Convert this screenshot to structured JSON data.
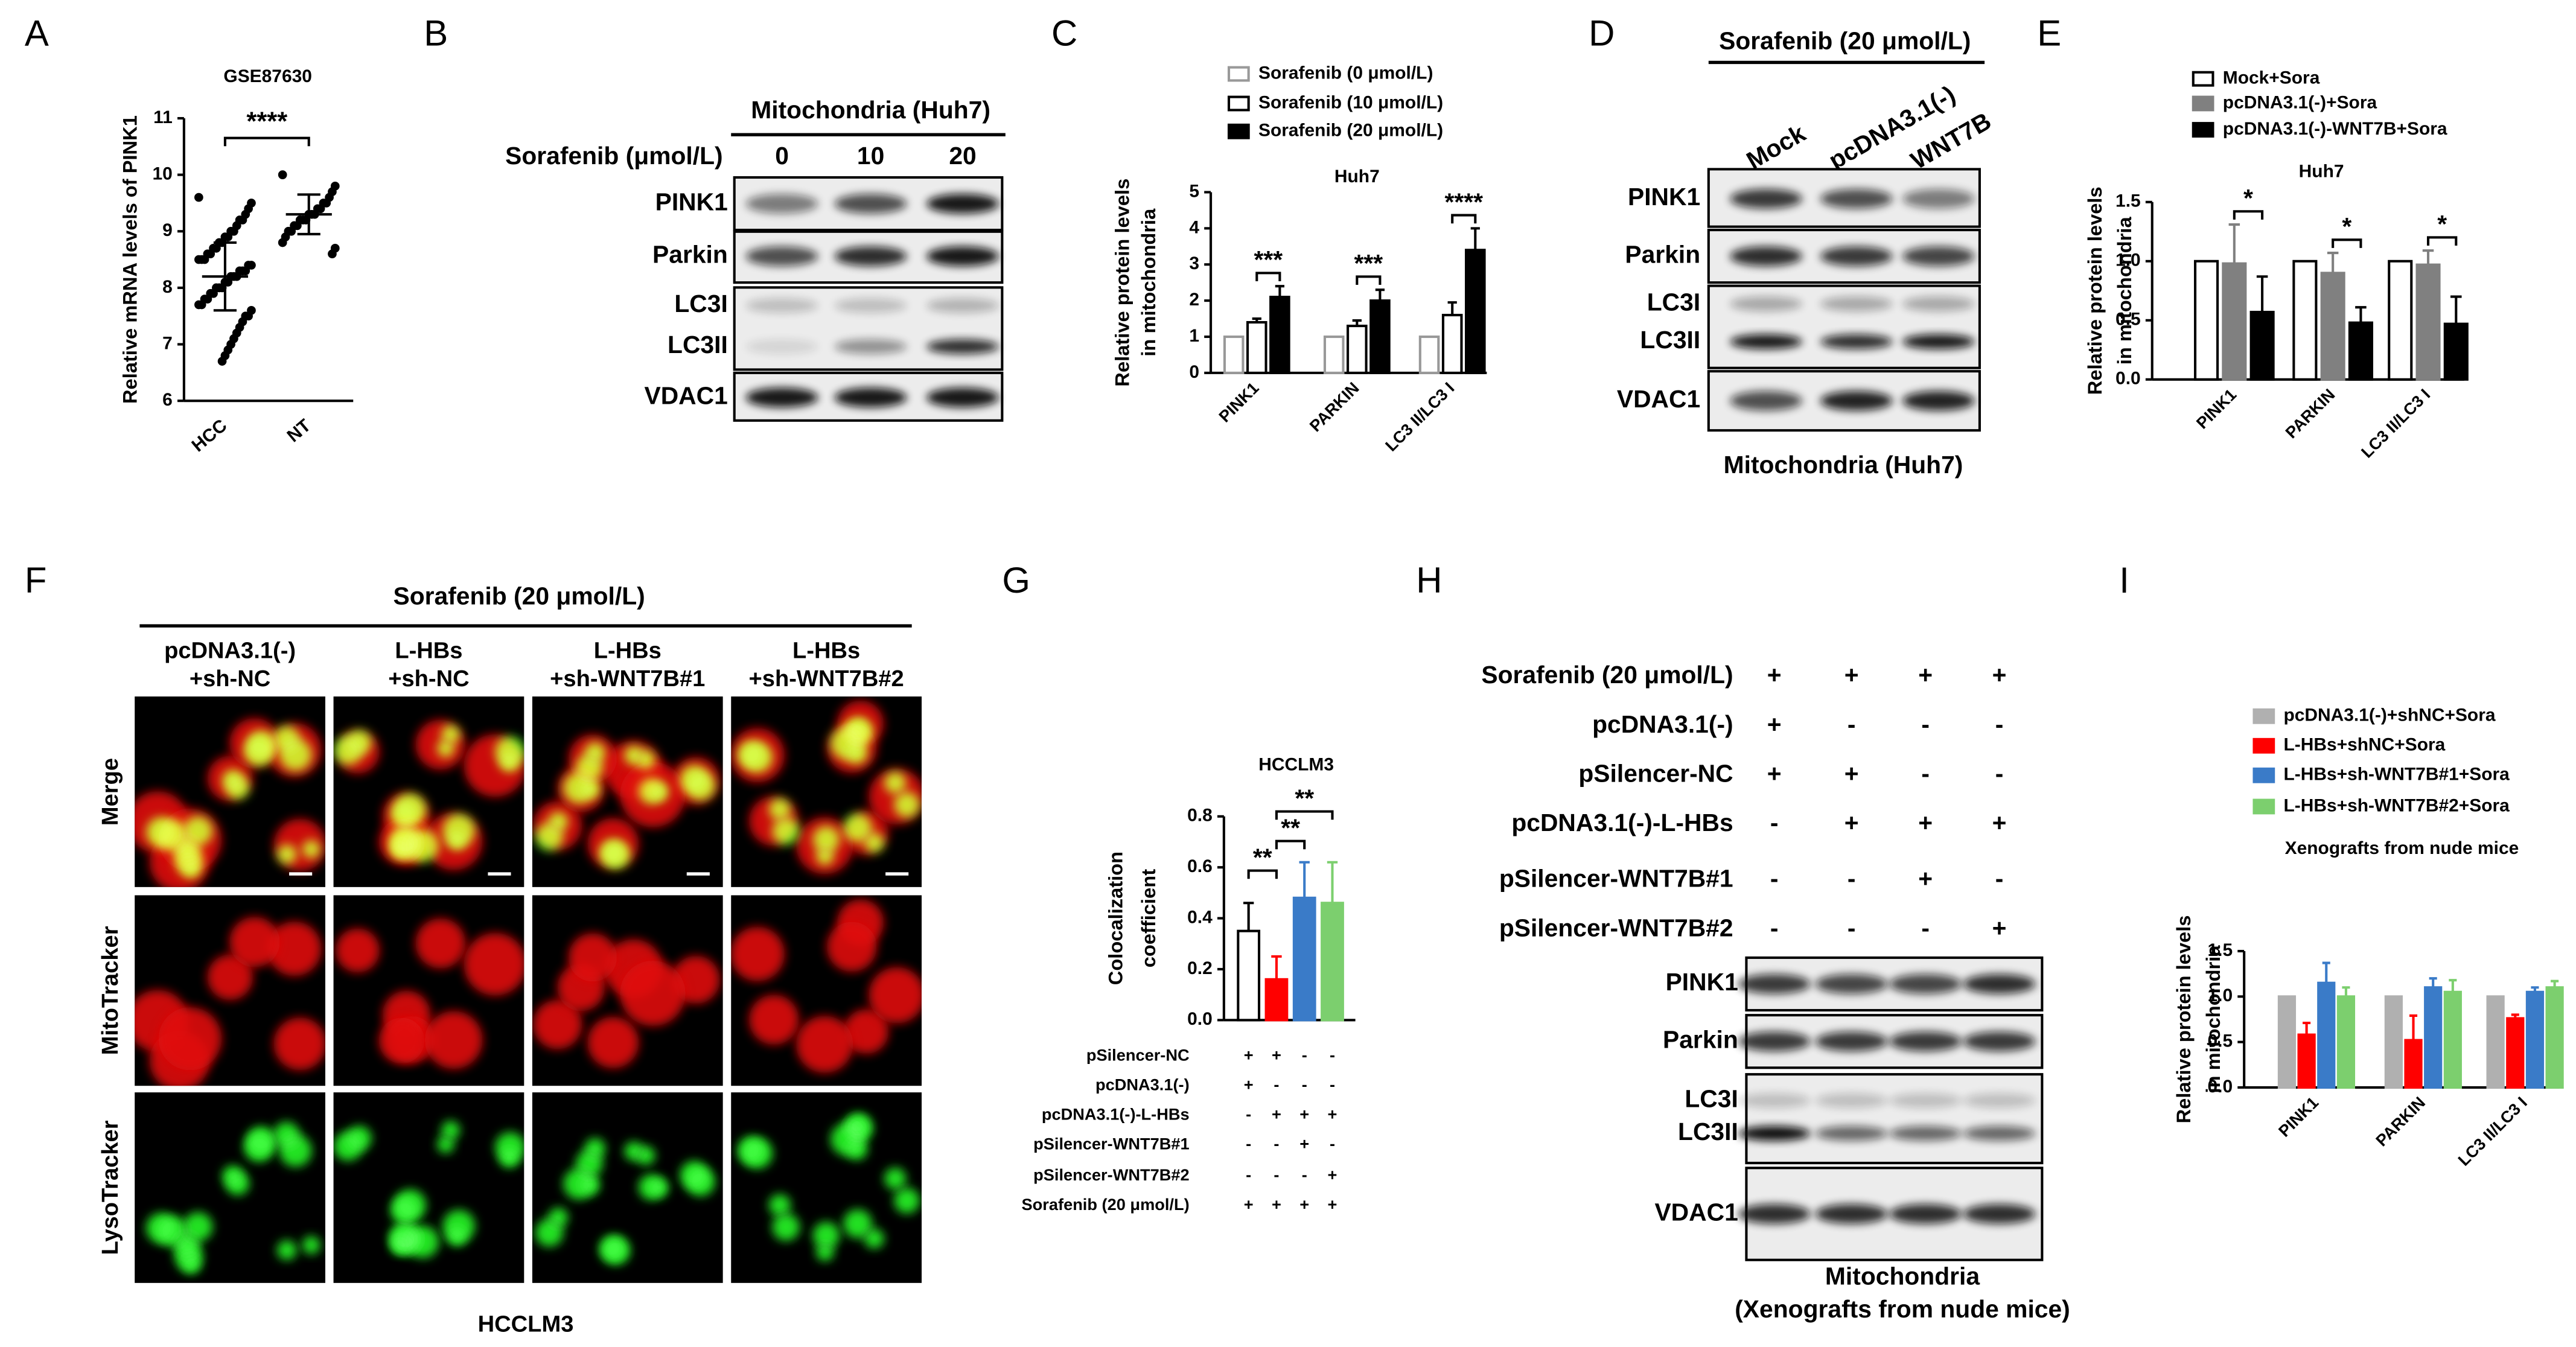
{
  "chart_data": [
    {
      "panel": "A",
      "type": "strip",
      "title": "GSE87630",
      "ylabel": "Relative mRNA levels of PINK1",
      "categories": [
        "HCC",
        "NT"
      ],
      "values": [
        [
          9.6,
          9.5,
          9.4,
          9.3,
          9.2,
          9.2,
          9.1,
          9.0,
          9.0,
          8.9,
          8.9,
          8.8,
          8.8,
          8.7,
          8.7,
          8.6,
          8.6,
          8.5,
          8.5,
          8.5,
          8.4,
          8.4,
          8.3,
          8.3,
          8.3,
          8.2,
          8.2,
          8.2,
          8.1,
          8.1,
          8.0,
          8.0,
          8.0,
          7.9,
          7.9,
          7.8,
          7.8,
          7.7,
          7.7,
          7.6,
          7.5,
          7.5,
          7.4,
          7.3,
          7.2,
          7.1,
          7.0,
          6.9,
          6.8,
          6.7
        ],
        [
          10.0,
          9.8,
          9.7,
          9.6,
          9.5,
          9.5,
          9.4,
          9.4,
          9.3,
          9.3,
          9.3,
          9.2,
          9.2,
          9.2,
          9.1,
          9.1,
          9.0,
          9.0,
          8.9,
          8.8,
          8.7,
          8.6
        ]
      ],
      "means": [
        8.2,
        9.3
      ],
      "sds": [
        0.6,
        0.35
      ],
      "color": "#000000",
      "ylim": [
        6,
        11
      ],
      "yticks": [
        6,
        7,
        8,
        9,
        10,
        11
      ],
      "annotation": "****"
    },
    {
      "panel": "C",
      "type": "bar",
      "title": "Huh7",
      "ylabel": [
        "Relative protein levels",
        "in mitochondria"
      ],
      "categories": [
        "PINK1",
        "PARKIN",
        "LC3 II/LC3 I"
      ],
      "series": [
        {
          "name": "Sorafenib (0 μmol/L)",
          "color": "#999999",
          "fill": "#ffffff",
          "values": [
            1,
            1,
            1
          ]
        },
        {
          "name": "Sorafenib (10 μmol/L)",
          "color": "#000000",
          "fill": "#ffffff",
          "values": [
            1.4,
            1.3,
            1.6
          ],
          "errors": [
            0.1,
            0.15,
            0.35
          ]
        },
        {
          "name": "Sorafenib (20 μmol/L)",
          "color": "#000000",
          "fill": "#000000",
          "values": [
            2.1,
            2.0,
            3.4
          ],
          "errors": [
            0.3,
            0.3,
            0.6
          ]
        }
      ],
      "ylim": [
        0,
        5
      ],
      "yticks": [
        0,
        1,
        2,
        3,
        4,
        5
      ],
      "annotations": [
        "***",
        "***",
        "****"
      ]
    },
    {
      "panel": "E",
      "type": "bar",
      "title": "Huh7",
      "ylabel": [
        "Relative protein levels",
        "in mitochondria"
      ],
      "categories": [
        "PINK1",
        "PARKIN",
        "LC3 II/LC3 I"
      ],
      "series": [
        {
          "name": "Mock+Sora",
          "color": "#000000",
          "fill": "#ffffff",
          "values": [
            1,
            1,
            1
          ]
        },
        {
          "name": "pcDNA3.1(-)+Sora",
          "color": "#808080",
          "fill": "#808080",
          "values": [
            0.98,
            0.9,
            0.97
          ],
          "errors": [
            0.33,
            0.17,
            0.12
          ]
        },
        {
          "name": "pcDNA3.1(-)-WNT7B+Sora",
          "color": "#000000",
          "fill": "#000000",
          "values": [
            0.57,
            0.48,
            0.47
          ],
          "errors": [
            0.3,
            0.13,
            0.23
          ]
        }
      ],
      "ylim": [
        0,
        1.5
      ],
      "yticks": [
        {
          "value": 0,
          "label": "0.0"
        },
        {
          "value": 0.5,
          "label": "0.5"
        },
        {
          "value": 1,
          "label": "1.0"
        },
        {
          "value": 1.5,
          "label": "1.5"
        }
      ],
      "annotations": [
        "*",
        "*",
        "*"
      ]
    },
    {
      "panel": "G",
      "type": "bar",
      "title": "HCCLM3",
      "ylabel": [
        "Colocalization",
        "coefficient"
      ],
      "values": [
        0.35,
        0.16,
        0.48,
        0.46
      ],
      "errors": [
        0.11,
        0.09,
        0.14,
        0.16
      ],
      "colors": [
        "#000000",
        "#ff0000",
        "#3a7bc8",
        "#7ccf6e"
      ],
      "fills": [
        "#ffffff",
        "#ff0000",
        "#3a7bc8",
        "#7ccf6e"
      ],
      "ylim": [
        0,
        0.8
      ],
      "yticks": [
        {
          "value": 0,
          "label": "0.0"
        },
        {
          "value": 0.2,
          "label": "0.2"
        },
        {
          "value": 0.4,
          "label": "0.4"
        },
        {
          "value": 0.6,
          "label": "0.6"
        },
        {
          "value": 0.8,
          "label": "0.8"
        }
      ],
      "annotations": [
        "**",
        "**",
        "**"
      ],
      "conditions": [
        {
          "label": "pSilencer-NC",
          "signs": [
            "+",
            "+",
            "-",
            "-"
          ]
        },
        {
          "label": "pcDNA3.1(-)",
          "signs": [
            "+",
            "-",
            "-",
            "-"
          ]
        },
        {
          "label": "pcDNA3.1(-)-L-HBs",
          "signs": [
            "-",
            "+",
            "+",
            "+"
          ]
        },
        {
          "label": "pSilencer-WNT7B#1",
          "signs": [
            "-",
            "-",
            "+",
            "-"
          ]
        },
        {
          "label": "pSilencer-WNT7B#2",
          "signs": [
            "-",
            "-",
            "-",
            "+"
          ]
        },
        {
          "label": "Sorafenib (20 μmol/L)",
          "signs": [
            "+",
            "+",
            "+",
            "+"
          ]
        }
      ]
    },
    {
      "panel": "I",
      "type": "bar",
      "title": "Xenografts from nude mice",
      "ylabel": [
        "Relative protein levels",
        "in mitochondria"
      ],
      "categories": [
        "PINK1",
        "PARKIN",
        "LC3 II/LC3 I"
      ],
      "series": [
        {
          "name": "pcDNA3.1(-)+shNC+Sora",
          "color": "#b0b0b0",
          "fill": "#b0b0b0",
          "values": [
            1,
            1,
            1
          ]
        },
        {
          "name": "L-HBs+shNC+Sora",
          "color": "#ff0000",
          "fill": "#ff0000",
          "values": [
            0.58,
            0.52,
            0.76
          ],
          "errors": [
            0.13,
            0.27,
            0.04
          ]
        },
        {
          "name": "L-HBs+sh-WNT7B#1+Sora",
          "color": "#3a7bc8",
          "fill": "#3a7bc8",
          "values": [
            1.15,
            1.1,
            1.05
          ],
          "errors": [
            0.22,
            0.1,
            0.05
          ]
        },
        {
          "name": "L-HBs+sh-WNT7B#2+Sora",
          "color": "#7ccf6e",
          "fill": "#7ccf6e",
          "values": [
            1.0,
            1.05,
            1.1
          ],
          "errors": [
            0.1,
            0.13,
            0.07
          ]
        }
      ],
      "ylim": [
        0,
        1.5
      ],
      "yticks": [
        {
          "value": 0,
          "label": "0.0"
        },
        {
          "value": 0.5,
          "label": "0.5"
        },
        {
          "value": 1,
          "label": "1.0"
        },
        {
          "value": 1.5,
          "label": "1.5"
        }
      ]
    }
  ],
  "blots": [
    {
      "panel": "B",
      "header": "Mitochondria (Huh7)",
      "lane_title": "Sorafenib (μmol/L)",
      "lanes": [
        "0",
        "10",
        "20"
      ],
      "bands": [
        "PINK1",
        "Parkin",
        "LC3I",
        "LC3II",
        "VDAC1"
      ]
    },
    {
      "panel": "D",
      "header": "Sorafenib (20 μmol/L)",
      "lanes": [
        "Mock",
        "pcDNA3.1(-)",
        "WNT7B"
      ],
      "bands": [
        "PINK1",
        "Parkin",
        "LC3I",
        "LC3II",
        "VDAC1"
      ],
      "footer": [
        "Mitochondria (Huh7)"
      ]
    },
    {
      "panel": "H",
      "conditions": [
        {
          "label": "Sorafenib (20 μmol/L)",
          "signs": [
            "+",
            "+",
            "+",
            "+"
          ]
        },
        {
          "label": "pcDNA3.1(-)",
          "signs": [
            "+",
            "-",
            "-",
            "-"
          ]
        },
        {
          "label": "pSilencer-NC",
          "signs": [
            "+",
            "+",
            "-",
            "-"
          ]
        },
        {
          "label": "pcDNA3.1(-)-L-HBs",
          "signs": [
            "-",
            "+",
            "+",
            "+"
          ]
        },
        {
          "label": "pSilencer-WNT7B#1",
          "signs": [
            "-",
            "-",
            "+",
            "-"
          ]
        },
        {
          "label": "pSilencer-WNT7B#2",
          "signs": [
            "-",
            "-",
            "-",
            "+"
          ]
        }
      ],
      "bands": [
        "PINK1",
        "Parkin",
        "LC3I",
        "LC3II",
        "VDAC1"
      ],
      "footer": [
        "Mitochondria",
        "(Xenografts from nude mice)"
      ]
    }
  ],
  "micrograph": {
    "panel": "F",
    "header": "Sorafenib (20 μmol/L)",
    "columns": [
      [
        "pcDNA3.1(-)",
        "+sh-NC"
      ],
      [
        "L-HBs",
        "+sh-NC"
      ],
      [
        "L-HBs",
        "+sh-WNT7B#1"
      ],
      [
        "L-HBs",
        "+sh-WNT7B#2"
      ]
    ],
    "rows": [
      "Merge",
      "MitoTracker",
      "LysoTracker"
    ],
    "footer": "HCCLM3"
  }
}
